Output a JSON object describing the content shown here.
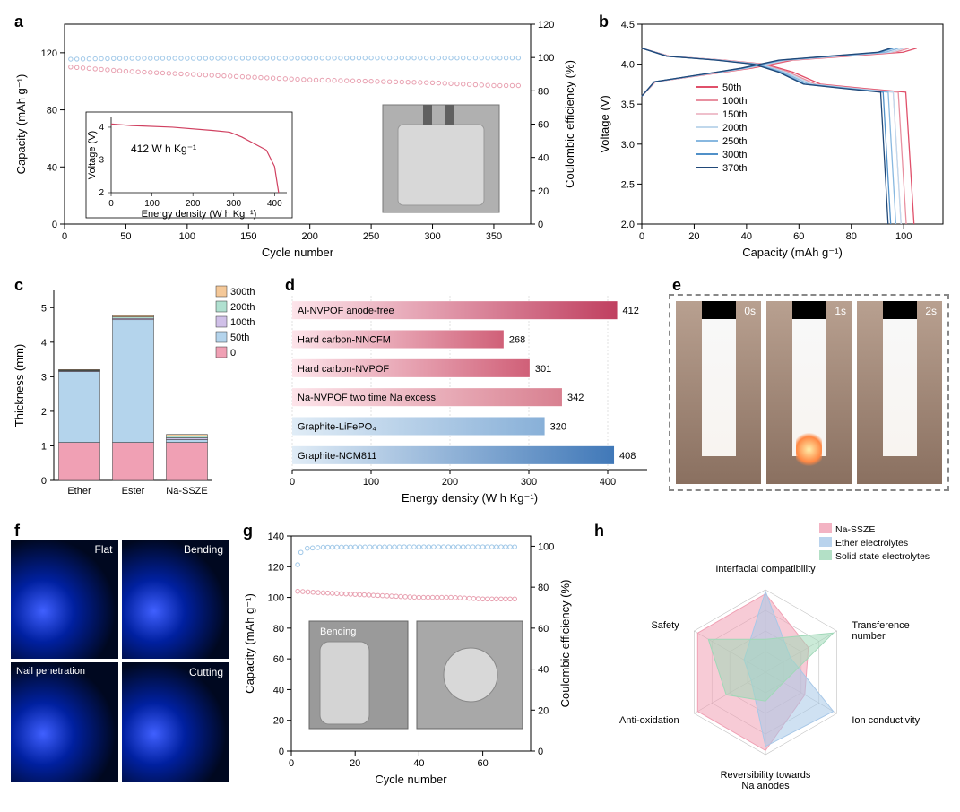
{
  "panel_a": {
    "label": "a",
    "x_label": "Cycle number",
    "y_left_label": "Capacity (mAh g⁻¹)",
    "y_right_label": "Coulombic efficiency (%)",
    "x_ticks": [
      0,
      50,
      100,
      150,
      200,
      250,
      300,
      350
    ],
    "xlim": [
      0,
      380
    ],
    "y_left_ticks": [
      0,
      40,
      80,
      120
    ],
    "y_left_lim": [
      0,
      140
    ],
    "y_right_ticks": [
      0,
      20,
      40,
      60,
      80,
      100,
      120
    ],
    "y_right_lim": [
      0,
      120
    ],
    "capacity_color": "#e8a0b0",
    "ce_color": "#a0c8e8",
    "capacity_data": [
      [
        5,
        110
      ],
      [
        50,
        107
      ],
      [
        100,
        105
      ],
      [
        150,
        103
      ],
      [
        200,
        101
      ],
      [
        250,
        100
      ],
      [
        300,
        99
      ],
      [
        350,
        97
      ],
      [
        370,
        97
      ]
    ],
    "ce_data": [
      [
        5,
        99
      ],
      [
        50,
        99.5
      ],
      [
        100,
        99.5
      ],
      [
        150,
        99.6
      ],
      [
        200,
        99.6
      ],
      [
        250,
        99.7
      ],
      [
        300,
        99.7
      ],
      [
        350,
        99.7
      ],
      [
        370,
        99.7
      ]
    ],
    "inset_plot": {
      "x_label": "Energy density (W h Kg⁻¹)",
      "y_label": "Voltage (V)",
      "x_ticks": [
        0,
        100,
        200,
        300,
        400
      ],
      "y_ticks": [
        2,
        3,
        4
      ],
      "annotation": "412 W h Kg⁻¹",
      "line_color": "#d04060",
      "data": [
        [
          0,
          4.1
        ],
        [
          50,
          4.05
        ],
        [
          150,
          4.0
        ],
        [
          250,
          3.9
        ],
        [
          290,
          3.85
        ],
        [
          320,
          3.7
        ],
        [
          380,
          3.3
        ],
        [
          400,
          2.8
        ],
        [
          410,
          2.0
        ]
      ]
    }
  },
  "panel_b": {
    "label": "b",
    "x_label": "Capacity (mAh g⁻¹)",
    "y_label": "Voltage (V)",
    "x_ticks": [
      0,
      20,
      40,
      60,
      80,
      100
    ],
    "xlim": [
      0,
      115
    ],
    "y_ticks": [
      2.0,
      2.5,
      3.0,
      3.5,
      4.0,
      4.5
    ],
    "ylim": [
      2.0,
      4.5
    ],
    "legend_labels": [
      "50th",
      "100th",
      "150th",
      "200th",
      "250th",
      "300th",
      "370th"
    ],
    "legend_colors": [
      "#e0506a",
      "#e890a0",
      "#efc0cc",
      "#c0d8ec",
      "#88b8e0",
      "#5090c8",
      "#204878"
    ],
    "charge_data_template": [
      [
        0,
        3.6
      ],
      [
        5,
        3.78
      ],
      [
        30,
        3.9
      ],
      [
        40,
        3.95
      ],
      [
        55,
        4.05
      ],
      [
        75,
        4.1
      ],
      [
        95,
        4.15
      ],
      [
        100,
        4.2
      ]
    ],
    "discharge_data_template": [
      [
        0,
        4.2
      ],
      [
        10,
        4.1
      ],
      [
        30,
        4.05
      ],
      [
        45,
        4.0
      ],
      [
        55,
        3.9
      ],
      [
        65,
        3.75
      ],
      [
        80,
        3.7
      ],
      [
        96,
        3.65
      ],
      [
        99,
        2.0
      ]
    ],
    "cycle_endpoints": [
      105,
      102,
      100,
      100,
      98,
      96,
      95
    ]
  },
  "panel_c": {
    "label": "c",
    "x_label": "",
    "y_label": "Thickness (mm)",
    "categories": [
      "Ether",
      "Ester",
      "Na-SSZE"
    ],
    "y_ticks": [
      0,
      1,
      2,
      3,
      4,
      5
    ],
    "ylim": [
      0,
      5.5
    ],
    "stack_labels": [
      "0",
      "50th",
      "100th",
      "200th",
      "300th"
    ],
    "stack_colors": [
      "#f0a0b4",
      "#b4d4ec",
      "#d0c0e8",
      "#b0e0d0",
      "#f4c898"
    ],
    "data": [
      [
        1.1,
        2.05,
        0.02,
        0.02,
        0.02
      ],
      [
        1.1,
        3.55,
        0.04,
        0.04,
        0.04
      ],
      [
        1.1,
        0.08,
        0.05,
        0.05,
        0.05
      ]
    ]
  },
  "panel_d": {
    "label": "d",
    "x_label": "Energy density (W h Kg⁻¹)",
    "x_ticks": [
      0,
      100,
      200,
      300,
      400
    ],
    "xlim": [
      0,
      450
    ],
    "categories": [
      "Al-NVPOF anode-free",
      "Hard carbon-NNCFM",
      "Hard carbon-NVPOF",
      "Na-NVPOF two time Na excess",
      "Graphite-LiFePO₄",
      "Graphite-NCM811"
    ],
    "values": [
      412,
      268,
      301,
      342,
      320,
      408
    ],
    "bar_start_colors": [
      "#fde4ea",
      "#fde4ea",
      "#fde4ea",
      "#fde4ea",
      "#e0ecf6",
      "#e0ecf6"
    ],
    "bar_end_colors": [
      "#c04060",
      "#d06078",
      "#d06078",
      "#d88090",
      "#88b0d8",
      "#4078b8"
    ],
    "grid_color": "#e0e0e0"
  },
  "panel_e": {
    "label": "e",
    "frames": [
      "0s",
      "1s",
      "2s"
    ]
  },
  "panel_f": {
    "label": "f",
    "quadrants": [
      "Flat",
      "Bending",
      "Nail penetration",
      "Cutting"
    ]
  },
  "panel_g": {
    "label": "g",
    "x_label": "Cycle number",
    "y_left_label": "Capacity (mAh g⁻¹)",
    "y_right_label": "Coulombic efficiency (%)",
    "x_ticks": [
      0,
      20,
      40,
      60
    ],
    "xlim": [
      0,
      75
    ],
    "y_left_ticks": [
      0,
      20,
      40,
      60,
      80,
      100,
      120,
      140
    ],
    "y_left_lim": [
      0,
      140
    ],
    "y_right_ticks": [
      0,
      20,
      40,
      60,
      80,
      100
    ],
    "y_right_lim": [
      0,
      105
    ],
    "capacity_color": "#e8a0b0",
    "ce_color": "#a0c8e8",
    "capacity_data": [
      [
        2,
        104
      ],
      [
        10,
        103
      ],
      [
        20,
        102
      ],
      [
        30,
        101
      ],
      [
        40,
        100
      ],
      [
        50,
        100
      ],
      [
        60,
        99
      ],
      [
        70,
        99
      ]
    ],
    "ce_data": [
      [
        2,
        91
      ],
      [
        3,
        97
      ],
      [
        5,
        99
      ],
      [
        10,
        99.5
      ],
      [
        20,
        99.6
      ],
      [
        40,
        99.7
      ],
      [
        60,
        99.7
      ],
      [
        70,
        99.7
      ]
    ],
    "inset_label": "Bending"
  },
  "panel_h": {
    "label": "h",
    "axes": [
      "Interfacial compatibility",
      "Transference number",
      "Ion conductivity",
      "Reversibility towards Na anodes",
      "Anti-oxidation",
      "Safety"
    ],
    "series": [
      {
        "name": "Na-SSZE",
        "color": "#f0a0b4",
        "fill_opacity": 0.55,
        "values": [
          0.95,
          0.6,
          0.55,
          0.95,
          0.95,
          0.95
        ]
      },
      {
        "name": "Ether electrolytes",
        "color": "#a8c8e8",
        "fill_opacity": 0.55,
        "values": [
          0.98,
          0.35,
          0.95,
          0.9,
          0.2,
          0.3
        ]
      },
      {
        "name": "Solid state electrolytes",
        "color": "#a0d8b8",
        "fill_opacity": 0.55,
        "values": [
          0.4,
          0.95,
          0.25,
          0.35,
          0.55,
          0.8
        ]
      }
    ],
    "grid_color": "#c0c0c0"
  },
  "global": {
    "grid_color": "#d8d8d8",
    "axis_color": "#000000",
    "bg": "#ffffff"
  }
}
